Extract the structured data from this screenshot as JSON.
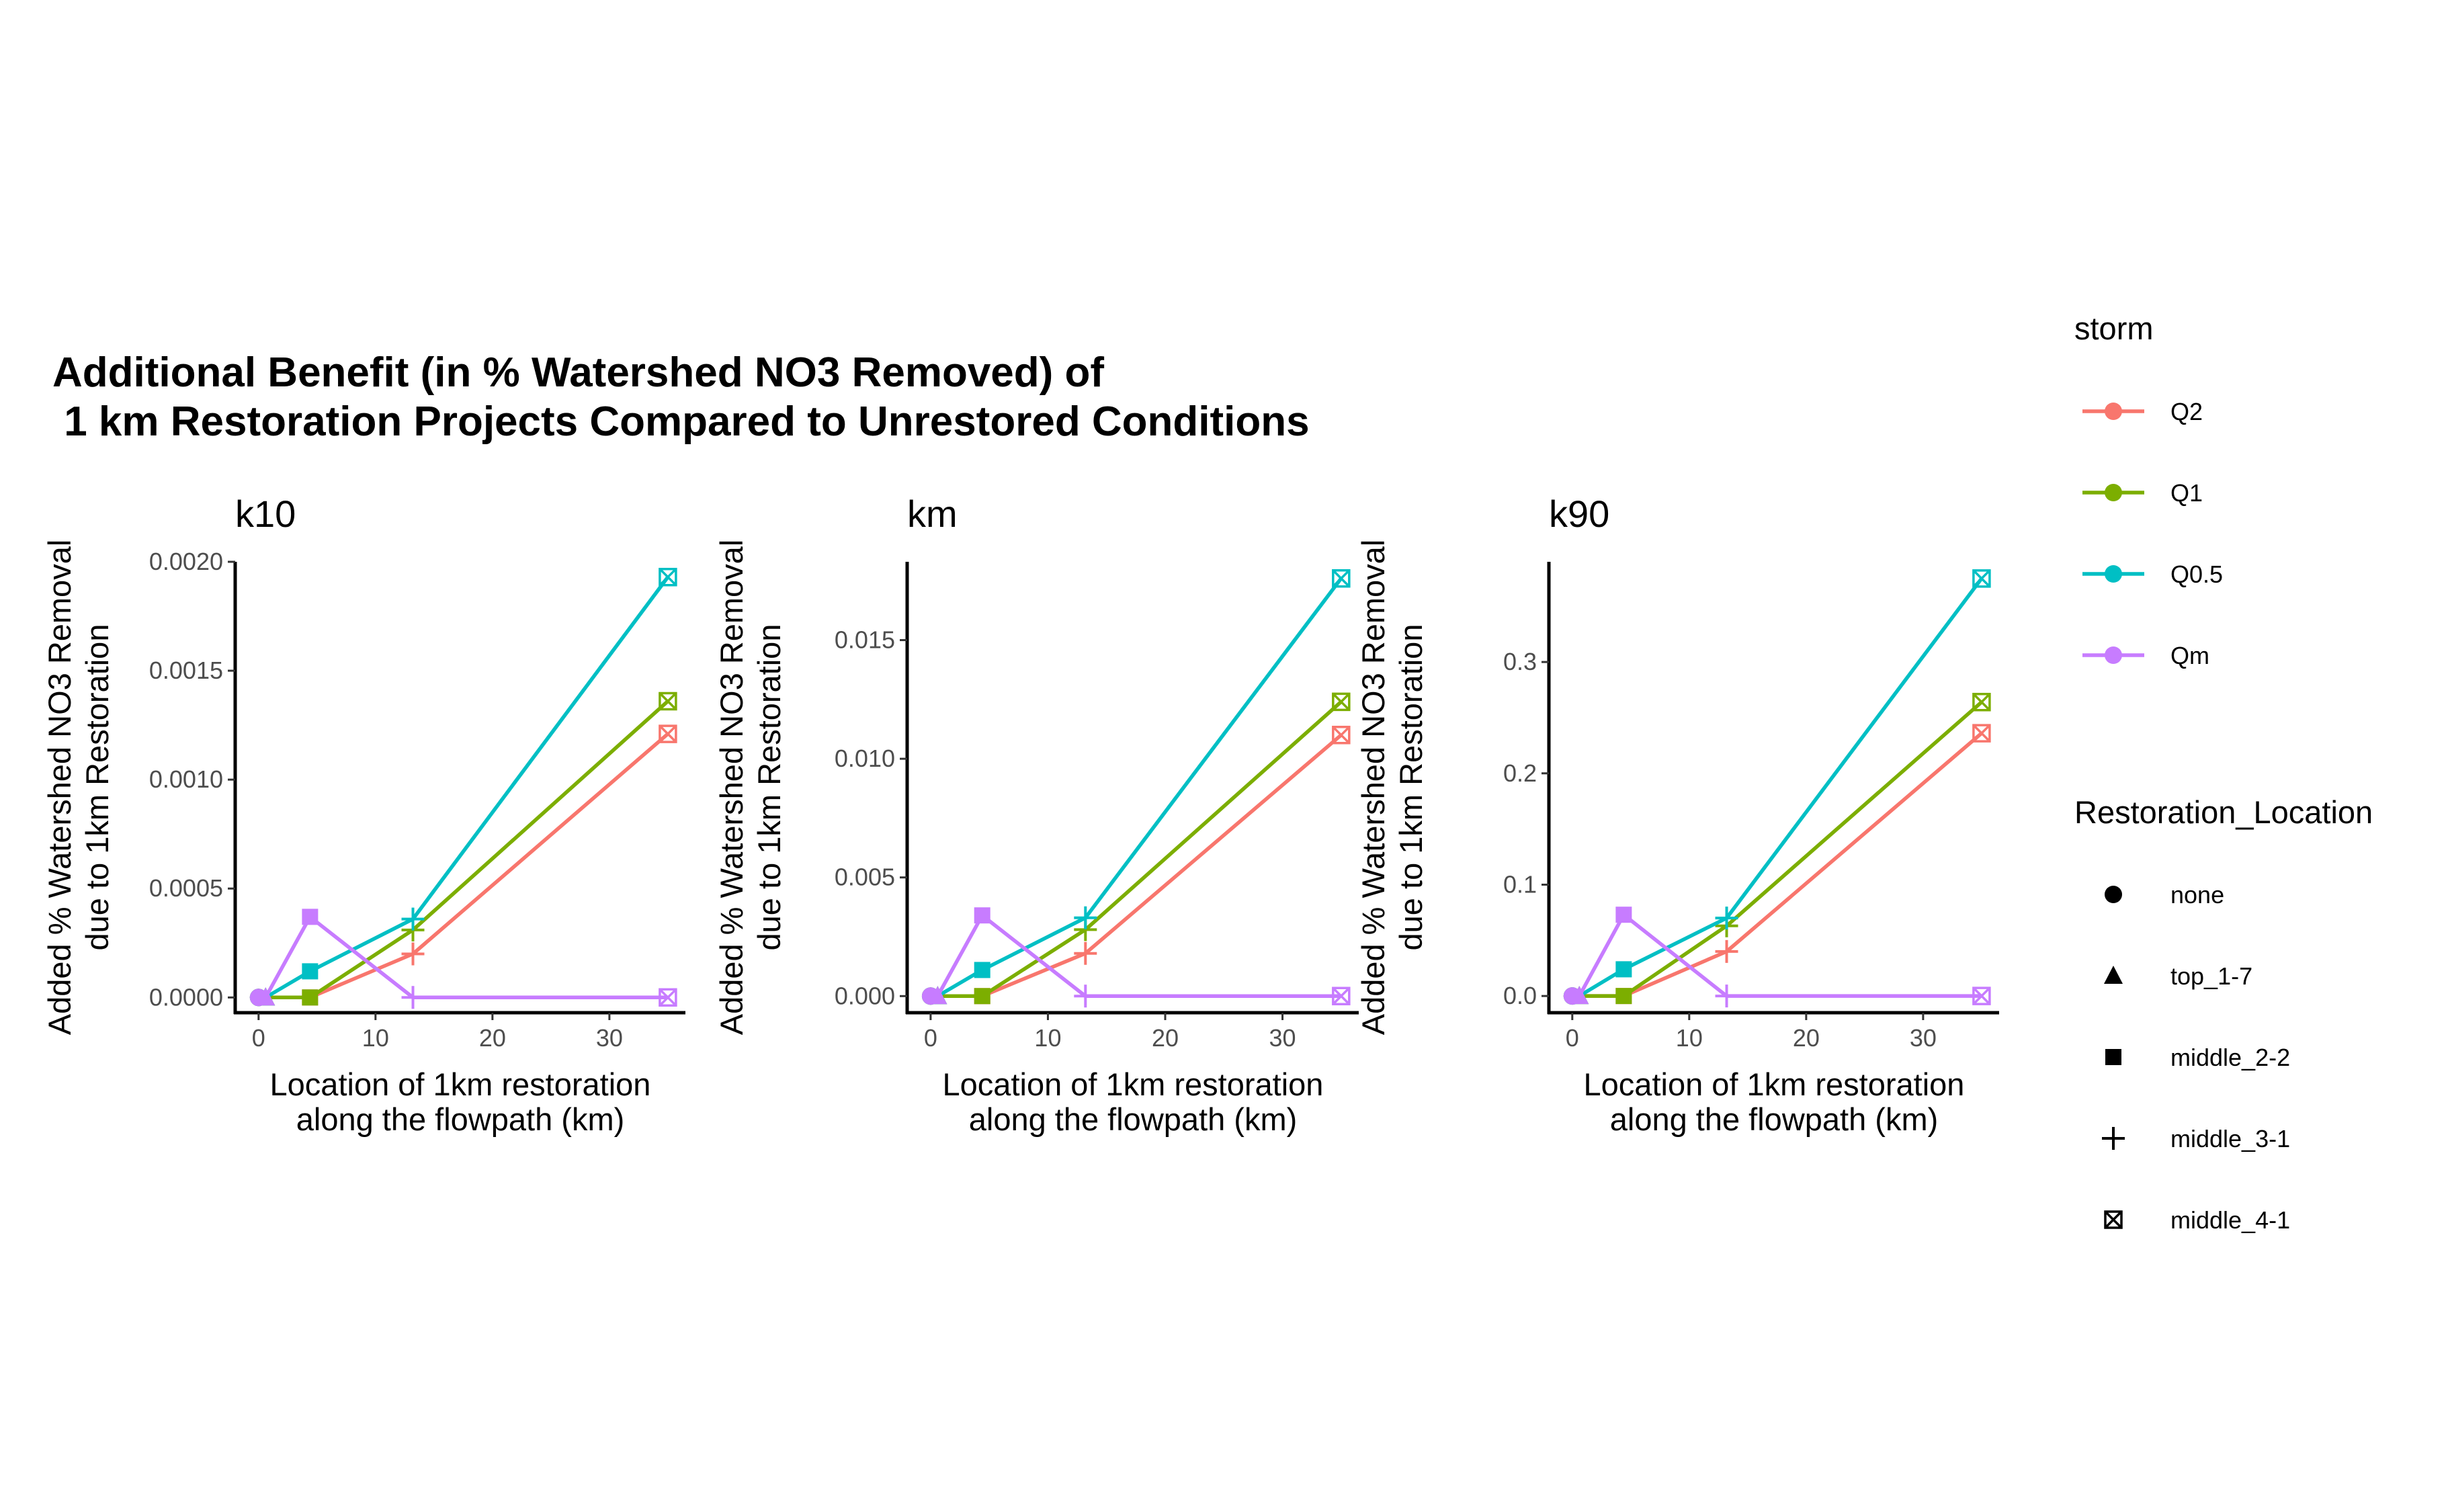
{
  "title": {
    "line1": "Additional Benefit (in % Watershed NO3 Removed) of",
    "line2": " 1 km Restoration Projects Compared to Unrestored Conditions"
  },
  "axis_titles": {
    "x_line1": "Location of 1km restoration",
    "x_line2": "along the flowpath (km)",
    "y_line1": "Added % Watershed NO3 Removal",
    "y_line2": "due to 1km Restoration"
  },
  "legend": {
    "storm_title": "storm",
    "storm_items": [
      {
        "label": "Q2",
        "color": "#F8766D"
      },
      {
        "label": "Q1",
        "color": "#7CAE00"
      },
      {
        "label": "Q0.5",
        "color": "#00BFC4"
      },
      {
        "label": "Qm",
        "color": "#C77CFF"
      }
    ],
    "location_title": "Restoration_Location",
    "location_items": [
      {
        "label": "none",
        "shape": "circle"
      },
      {
        "label": "top_1-7",
        "shape": "triangle"
      },
      {
        "label": "middle_2-2",
        "shape": "square"
      },
      {
        "label": "middle_3-1",
        "shape": "plus"
      },
      {
        "label": "middle_4-1",
        "shape": "boxed-x"
      }
    ]
  },
  "chart_data": [
    {
      "type": "line",
      "title": "k10",
      "xlabel": "Location of 1km restoration\nalong the flowpath (km)",
      "ylabel": "Added % Watershed NO3 Removal\ndue to 1km Restoration",
      "x": [
        0,
        0.6,
        4.4,
        13.2,
        35
      ],
      "point_shapes": [
        "circle",
        "triangle",
        "square",
        "plus",
        "boxed-x"
      ],
      "xlim": [
        -2,
        36.5
      ],
      "ylim": [
        -7e-05,
        0.002
      ],
      "xticks": [
        0,
        10,
        20,
        30
      ],
      "yticks": [
        0.0,
        0.0005,
        0.001,
        0.0015,
        0.002
      ],
      "ytick_labels": [
        "0.0000",
        "0.0005",
        "0.0010",
        "0.0015",
        "0.0020"
      ],
      "series": [
        {
          "name": "Q2",
          "values": [
            0,
            0,
            0,
            0.0002,
            0.00121
          ]
        },
        {
          "name": "Q1",
          "values": [
            0,
            0,
            0,
            0.00031,
            0.00136
          ]
        },
        {
          "name": "Q0.5",
          "values": [
            0,
            0,
            0.00012,
            0.00036,
            0.00193
          ]
        },
        {
          "name": "Qm",
          "values": [
            0,
            0,
            0.00037,
            0,
            0
          ]
        }
      ],
      "grid": false
    },
    {
      "type": "line",
      "title": "km",
      "xlabel": "Location of 1km restoration\nalong the flowpath (km)",
      "ylabel": "Added % Watershed NO3 Removal\ndue to 1km Restoration",
      "x": [
        0,
        0.6,
        4.4,
        13.2,
        35
      ],
      "point_shapes": [
        "circle",
        "triangle",
        "square",
        "plus",
        "boxed-x"
      ],
      "xlim": [
        -2,
        36.5
      ],
      "ylim": [
        -0.0007,
        0.0183
      ],
      "xticks": [
        0,
        10,
        20,
        30
      ],
      "yticks": [
        0.0,
        0.005,
        0.01,
        0.015
      ],
      "ytick_labels": [
        "0.000",
        "0.005",
        "0.010",
        "0.015"
      ],
      "series": [
        {
          "name": "Q2",
          "values": [
            0,
            0,
            0,
            0.0018,
            0.011
          ]
        },
        {
          "name": "Q1",
          "values": [
            0,
            0,
            0,
            0.0028,
            0.0124
          ]
        },
        {
          "name": "Q0.5",
          "values": [
            0,
            0,
            0.0011,
            0.0033,
            0.0176
          ]
        },
        {
          "name": "Qm",
          "values": [
            0,
            0,
            0.0034,
            0,
            0
          ]
        }
      ],
      "grid": false
    },
    {
      "type": "line",
      "title": "k90",
      "xlabel": "Location of 1km restoration\nalong the flowpath (km)",
      "ylabel": "Added % Watershed NO3 Removal\ndue to 1km Restoration",
      "x": [
        0,
        0.6,
        4.4,
        13.2,
        35
      ],
      "point_shapes": [
        "circle",
        "triangle",
        "square",
        "plus",
        "boxed-x"
      ],
      "xlim": [
        -2,
        36.5
      ],
      "ylim": [
        -0.015,
        0.39
      ],
      "xticks": [
        0,
        10,
        20,
        30
      ],
      "yticks": [
        0.0,
        0.1,
        0.2,
        0.3
      ],
      "ytick_labels": [
        "0.0",
        "0.1",
        "0.2",
        "0.3"
      ],
      "series": [
        {
          "name": "Q2",
          "values": [
            0,
            0,
            0,
            0.04,
            0.236
          ]
        },
        {
          "name": "Q1",
          "values": [
            0,
            0,
            0,
            0.063,
            0.264
          ]
        },
        {
          "name": "Q0.5",
          "values": [
            0,
            0,
            0.024,
            0.07,
            0.375
          ]
        },
        {
          "name": "Qm",
          "values": [
            0,
            0,
            0.073,
            0,
            0
          ]
        }
      ],
      "grid": false
    }
  ]
}
